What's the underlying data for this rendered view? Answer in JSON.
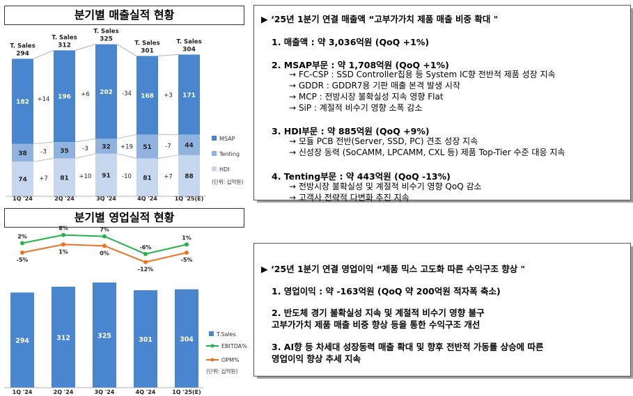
{
  "sales_section": {
    "title": "분기별 매출실적 현황",
    "unit": "(단위: 십억원)",
    "total_label": "T. Sales",
    "legend": [
      "MSAP",
      "Tenting",
      "HDI"
    ],
    "colors": {
      "MSAP": "#4a86cf",
      "Tenting": "#8fb2df",
      "HDI": "#c5d8ef"
    }
  },
  "profit_section": {
    "title": "분기별 영업실적 현황",
    "unit": "(단위: 십억원)",
    "legend": [
      "T.Sales",
      "EBITDA%",
      "OPM%"
    ],
    "colors": {
      "bar": "#4a86cf",
      "EBITDA": "#22b14c",
      "OPM": "#f07020"
    }
  },
  "sales_panel": {
    "heading": "‘25년 1분기 연결 매출액  “고부가가치 제품 매출 비중 확대 \"",
    "items": [
      {
        "label": "1. 매출액 : 약 3,036억원 (QoQ +1%)",
        "subs": []
      },
      {
        "label": "2. MSAP부문   : 약 1,708억원 (QoQ +1%)",
        "subs": [
          "→ FC-CSP : SSD Controller칩용 등 System IC향 전반적 제품 성장 지속",
          "→ GDDR   : GDDR7용 기판 매출 본격 발생 시작",
          "→ MCP      : 전방시장 불확실성 지속 영향 Flat",
          "→ SiP       : 계절적 비수기 영향 소폭 감소"
        ]
      },
      {
        "label": "3. HDI부문      : 약 885억원 (QoQ +9%)",
        "subs": [
          "→ 모듈 PCB 전반(Server, SSD, PC) 견조 성장 지속",
          "→ 신성장 동력 (SoCAMM, LPCAMM, CXL 등) 제품 Top-Tier 수준 대응 지속"
        ]
      },
      {
        "label": "4. Tenting부문 : 약 443억원 (QoQ -13%)",
        "subs": [
          "→ 전방시장 불확실성 및 계절적 비수기 영향 QoQ 감소",
          "→ 고객사 전략적 다변화 추진 지속"
        ]
      }
    ]
  },
  "profit_panel": {
    "heading": "‘25년 1분기 연결 영업이익 “제품 믹스 고도화 따른 수익구조 향상 \"",
    "items": [
      {
        "lines": [
          "1. 영업이익 : 약 -163억원 (QoQ 약 200억원 적자폭 축소)"
        ]
      },
      {
        "lines": [
          "2. 반도체 경기 불확실성 지속 및 계절적 비수기 영향 불구",
          "   고부가가치 제품 매출 비중 향상 등을 통한 수익구조 개선"
        ]
      },
      {
        "lines": [
          "3. AI향 등 차세대 성장동력 매출 확대 및 향후 전반적 가동률 상승에 따른",
          "   영업이익 향상 추세 지속"
        ]
      }
    ]
  },
  "chart_data": [
    {
      "type": "bar",
      "stacked": true,
      "categories": [
        "1Q '24",
        "2Q '24",
        "3Q '24",
        "4Q '24",
        "1Q '25(E)"
      ],
      "totals": [
        294,
        312,
        325,
        301,
        304
      ],
      "series": [
        {
          "name": "HDI",
          "values": [
            74,
            81,
            91,
            81,
            88
          ]
        },
        {
          "name": "Tenting",
          "values": [
            38,
            35,
            32,
            51,
            44
          ]
        },
        {
          "name": "MSAP",
          "values": [
            182,
            196,
            202,
            168,
            171
          ]
        }
      ],
      "changes": {
        "MSAP": [
          "+14",
          "+6",
          "-34",
          "+3"
        ],
        "Tenting": [
          "-3",
          "-3",
          "+19",
          "-7"
        ],
        "HDI": [
          "+7",
          "+10",
          "-10",
          "+7"
        ]
      },
      "legend_position": "right",
      "grid": false
    },
    {
      "type": "bar",
      "categories": [
        "1Q '24",
        "2Q '24",
        "3Q '24",
        "4Q '24",
        "1Q '25(E)"
      ],
      "series": [
        {
          "name": "T.Sales",
          "type": "bar",
          "values": [
            294,
            312,
            325,
            301,
            304
          ]
        },
        {
          "name": "EBITDA%",
          "type": "line",
          "values": [
            2,
            8,
            7,
            -6,
            1
          ],
          "labels": [
            "2%",
            "8%",
            "7%",
            "-6%",
            "1%"
          ]
        },
        {
          "name": "OPM%",
          "type": "line",
          "values": [
            -5,
            1,
            0,
            -12,
            -5
          ],
          "labels": [
            "-5%",
            "1%",
            "0%",
            "-12%",
            "-5%"
          ]
        }
      ],
      "legend_position": "right",
      "grid": false
    }
  ]
}
